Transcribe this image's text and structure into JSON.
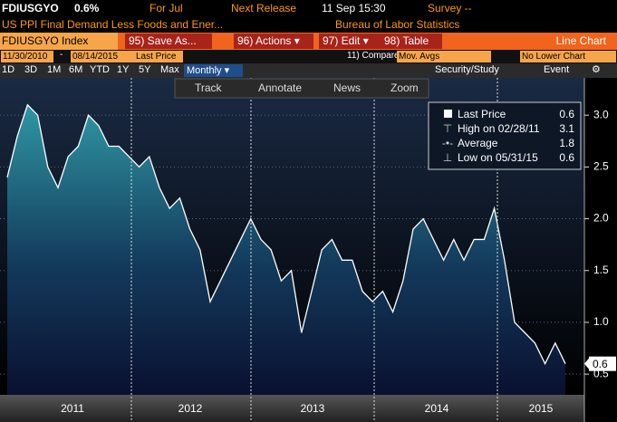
{
  "header": {
    "ticker": "FDIUSGYO",
    "change": "0.6%",
    "for": "For Jul",
    "next_release": "Next Release",
    "release_time": "11 Sep 15:30",
    "survey": "Survey --",
    "description": "US PPI Final Demand Less Foods and Ener...",
    "source": "Bureau of Labor Statistics"
  },
  "toolbar": {
    "security": "FDIUSGYO Index",
    "buttons": [
      "95) Save As...",
      "96) Actions ▾",
      "97) Edit ▾",
      "98) Table"
    ],
    "chart_type": "Line Chart"
  },
  "range": {
    "start": "11/30/2010",
    "dash": "-",
    "end": "08/14/2015",
    "field": "Last Price",
    "compare": "11) Compare",
    "mov_avgs": "Mov. Avgs",
    "lower": "No Lower Chart"
  },
  "periods": [
    "1D",
    "3D",
    "1M",
    "6M",
    "YTD",
    "1Y",
    "5Y",
    "Max"
  ],
  "frequency": "Monthly ▾",
  "security_study": "Security/Study",
  "event": "Event",
  "chart_tools": [
    "Track",
    "Annotate",
    "News",
    "Zoom"
  ],
  "chart_data": {
    "type": "area",
    "x_labels": [
      "2011",
      "2012",
      "2013",
      "2014",
      "2015"
    ],
    "series": [
      {
        "name": "Last Price",
        "color": "#ffffff",
        "values": [
          2.4,
          2.8,
          3.1,
          3.0,
          2.5,
          2.3,
          2.6,
          2.7,
          3.0,
          2.9,
          2.7,
          2.7,
          2.6,
          2.5,
          2.6,
          2.3,
          2.1,
          2.2,
          1.9,
          1.7,
          1.2,
          1.4,
          1.6,
          1.8,
          2.0,
          1.8,
          1.7,
          1.4,
          1.5,
          0.9,
          1.3,
          1.7,
          1.8,
          1.6,
          1.6,
          1.3,
          1.2,
          1.3,
          1.1,
          1.4,
          1.9,
          2.0,
          1.8,
          1.6,
          1.8,
          1.6,
          1.8,
          1.8,
          2.1,
          1.6,
          1.0,
          0.9,
          0.8,
          0.6,
          0.8,
          0.6
        ]
      }
    ],
    "legend": {
      "high_label": "High on 02/28/11",
      "average_label": "Average",
      "average": 1.8,
      "low_label": "Low on 05/31/15"
    },
    "ylim": [
      0.3,
      3.36
    ],
    "yticks": [
      0.5,
      {
        "value": 1,
        "label": "1.0"
      },
      1.5,
      {
        "value": 2,
        "label": "2.0"
      },
      2.5,
      {
        "value": 3,
        "label": "3.0"
      }
    ],
    "grid": true
  }
}
